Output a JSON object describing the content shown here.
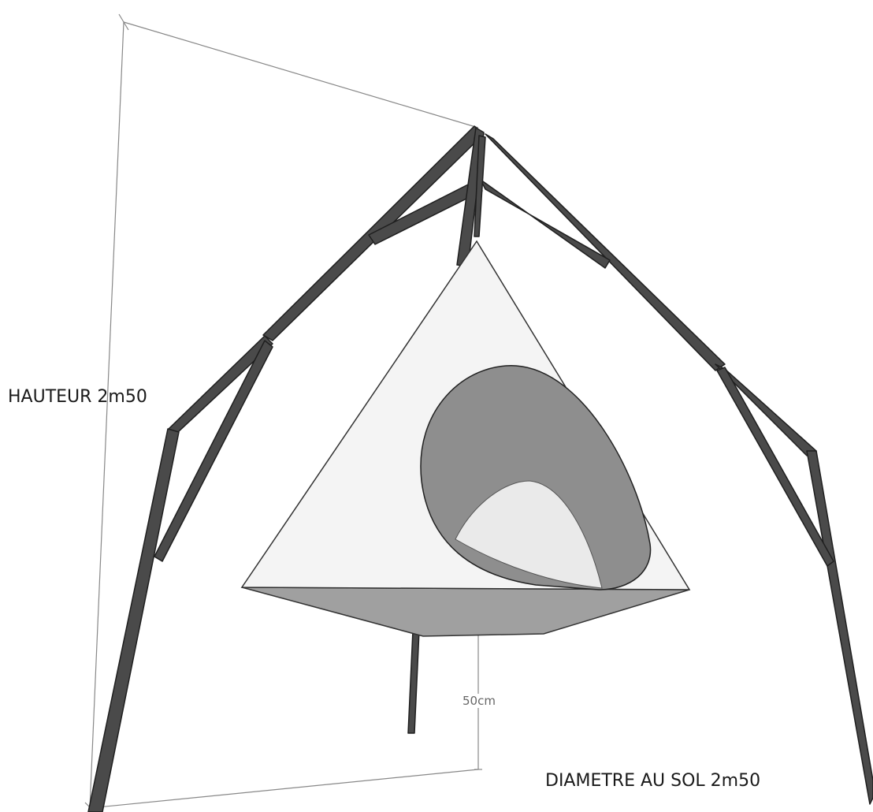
{
  "annotations": {
    "height_label": "HAUTEUR 2m50",
    "diameter_label": "DIAMETRE AU SOL 2m50",
    "clearance_label": "50cm"
  },
  "colors": {
    "frame": "#4a4a4a",
    "frame_edge": "#1f1f1f",
    "cone_body": "#f4f4f4",
    "cone_base": "#a0a0a0",
    "opening": "#8e8e8e",
    "opening_inner": "#eaeaea",
    "dimension_line": "#888888"
  }
}
